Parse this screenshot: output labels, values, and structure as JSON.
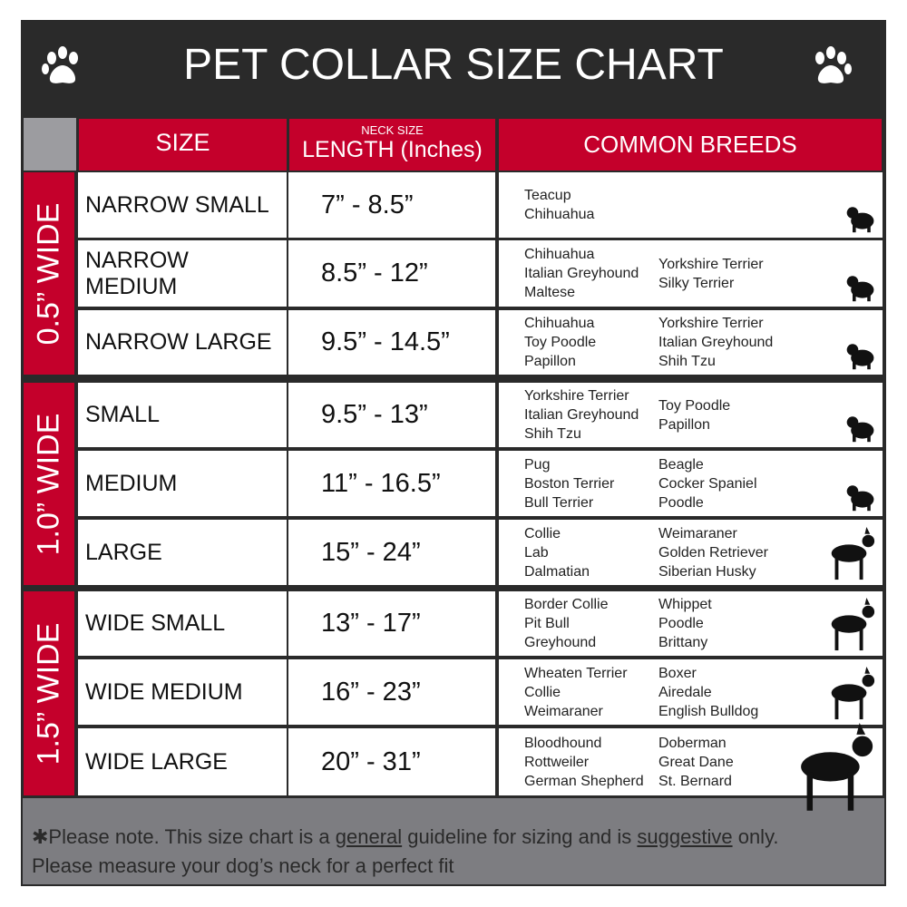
{
  "title": "PET COLLAR SIZE CHART",
  "icons": {
    "left": "paw-icon",
    "right": "paw-icon"
  },
  "colors": {
    "accent": "#c4002b",
    "dark": "#2a2a2a",
    "gray": "#7d7d81"
  },
  "header": {
    "size": "SIZE",
    "length_small": "NECK SIZE",
    "length": "LENGTH (Inches)",
    "breeds": "COMMON BREEDS"
  },
  "groups": [
    {
      "label": "0.5” WIDE",
      "rows": [
        {
          "size": "NARROW SMALL",
          "length": "7” - 8.5”",
          "breeds_left": [
            "Teacup",
            "Chihuahua"
          ],
          "breeds_right": [],
          "icon": "yorkie-silhouette-icon"
        },
        {
          "size": "NARROW MEDIUM",
          "length": "8.5” - 12”",
          "breeds_left": [
            "Chihuahua",
            "Italian Greyhound",
            "Maltese"
          ],
          "breeds_right": [
            "Yorkshire Terrier",
            "Silky Terrier"
          ],
          "icon": "chihuahua-silhouette-icon"
        },
        {
          "size": "NARROW LARGE",
          "length": "9.5” - 14.5”",
          "breeds_left": [
            "Chihuahua",
            "Toy Poodle",
            "Papillon"
          ],
          "breeds_right": [
            "Yorkshire Terrier",
            "Italian Greyhound",
            "Shih Tzu"
          ],
          "icon": "pomeranian-silhouette-icon"
        }
      ]
    },
    {
      "label": "1.0” WIDE",
      "rows": [
        {
          "size": "SMALL",
          "length": "9.5” - 13”",
          "breeds_left": [
            "Yorkshire Terrier",
            "Italian Greyhound",
            "Shih Tzu"
          ],
          "breeds_right": [
            "Toy Poodle",
            "Papillon"
          ],
          "icon": "pomeranian-silhouette-icon"
        },
        {
          "size": "MEDIUM",
          "length": "11” - 16.5”",
          "breeds_left": [
            "Pug",
            "Boston Terrier",
            "Bull Terrier"
          ],
          "breeds_right": [
            "Beagle",
            "Cocker Spaniel",
            "Poodle"
          ],
          "icon": "spaniel-silhouette-icon"
        },
        {
          "size": "LARGE",
          "length": "15” - 24”",
          "breeds_left": [
            "Collie",
            "Lab",
            "Dalmatian"
          ],
          "breeds_right": [
            "Weimaraner",
            "Golden Retriever",
            "Siberian Husky"
          ],
          "icon": "shepherd-silhouette-icon"
        }
      ]
    },
    {
      "label": "1.5” WIDE",
      "rows": [
        {
          "size": "WIDE SMALL",
          "length": "13” - 17”",
          "breeds_left": [
            "Border Collie",
            "Pit Bull",
            "Greyhound"
          ],
          "breeds_right": [
            "Whippet",
            "Poodle",
            "Brittany"
          ],
          "icon": "bulldog-silhouette-icon"
        },
        {
          "size": "WIDE MEDIUM",
          "length": "16” - 23”",
          "breeds_left": [
            "Wheaten Terrier",
            "Collie",
            "Weimaraner"
          ],
          "breeds_right": [
            "Boxer",
            "Airedale",
            "English Bulldog"
          ],
          "icon": "pitbull-silhouette-icon"
        },
        {
          "size": "WIDE LARGE",
          "length": "20” - 31”",
          "breeds_left": [
            "Bloodhound",
            "Rottweiler",
            "German Shepherd"
          ],
          "breeds_right": [
            "Doberman",
            "Great Dane",
            "St. Bernard"
          ],
          "icon": "doberman-silhouette-icon"
        }
      ]
    }
  ],
  "footer": {
    "line1_a": "✱Please note. This size chart is a ",
    "line1_u1": "general",
    "line1_b": " guideline for sizing and is ",
    "line1_u2": "suggestive",
    "line1_c": " only.",
    "line2": "Please measure your dog’s neck for a perfect fit"
  }
}
